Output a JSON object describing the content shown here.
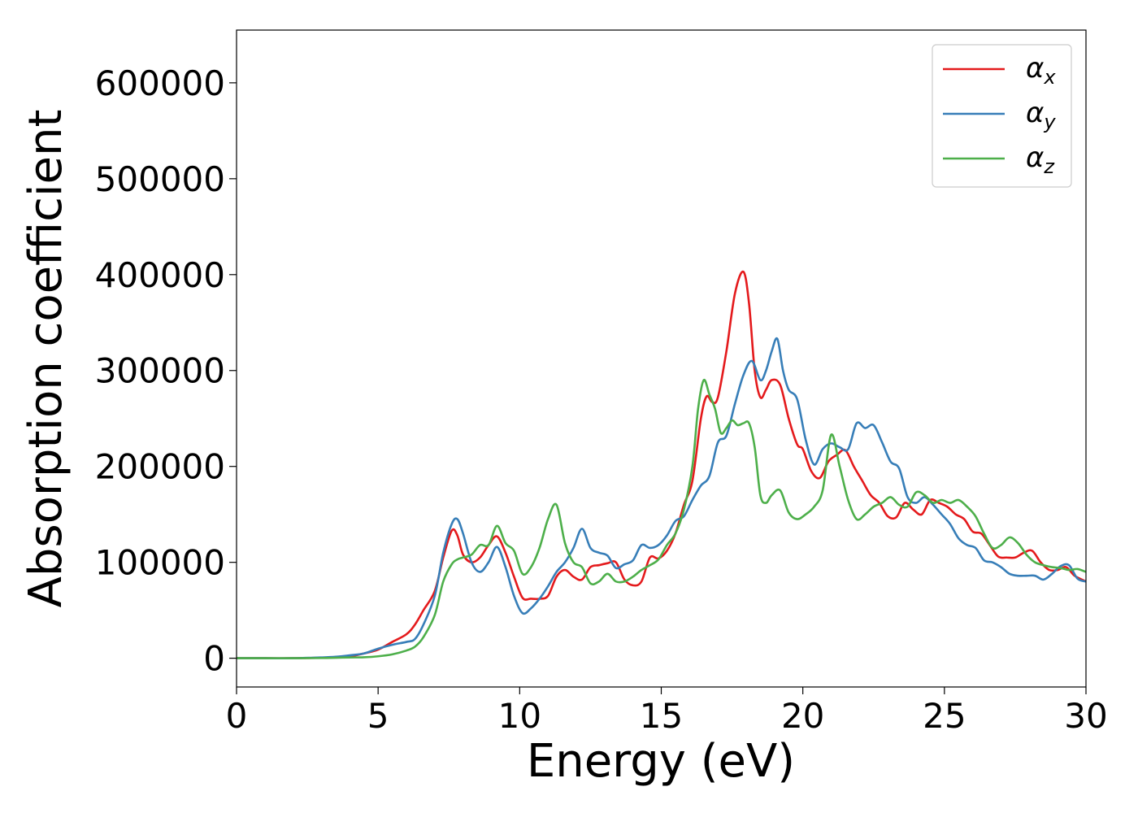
{
  "chart_data": {
    "type": "line",
    "title": "",
    "xlabel": "Energy (eV)",
    "ylabel": "Absorption coefficient",
    "xlim": [
      0,
      30
    ],
    "ylim": [
      -30000,
      655000
    ],
    "xticks": [
      0,
      5,
      10,
      15,
      20,
      25,
      30
    ],
    "yticks": [
      0,
      100000,
      200000,
      300000,
      400000,
      500000,
      600000
    ],
    "grid": false,
    "legend_position": "top-right",
    "series": [
      {
        "name": "α",
        "subscript": "x",
        "color": "#e41a1c",
        "x": [
          0,
          1,
          2,
          3,
          3.5,
          4,
          4.5,
          5,
          5.5,
          6,
          6.3,
          6.6,
          7,
          7.3,
          7.6,
          7.8,
          8,
          8.3,
          8.6,
          8.9,
          9.2,
          9.5,
          9.8,
          10.1,
          10.4,
          10.7,
          11,
          11.3,
          11.6,
          11.9,
          12.2,
          12.5,
          12.8,
          13.1,
          13.4,
          13.7,
          14,
          14.3,
          14.6,
          14.9,
          15.2,
          15.5,
          15.8,
          16.1,
          16.4,
          16.6,
          16.8,
          17,
          17.3,
          17.6,
          17.9,
          18.1,
          18.3,
          18.5,
          18.7,
          18.9,
          19.2,
          19.5,
          19.8,
          20,
          20.3,
          20.6,
          20.9,
          21.2,
          21.5,
          21.8,
          22.1,
          22.4,
          22.7,
          23,
          23.3,
          23.6,
          23.9,
          24.2,
          24.5,
          24.8,
          25.1,
          25.4,
          25.7,
          26,
          26.3,
          26.6,
          26.9,
          27.2,
          27.5,
          27.8,
          28.1,
          28.4,
          28.7,
          29,
          29.3,
          29.6,
          30
        ],
        "values": [
          0,
          0,
          0,
          500,
          1000,
          2000,
          5000,
          9000,
          17000,
          25000,
          35000,
          50000,
          70000,
          105000,
          133000,
          128000,
          108000,
          100000,
          105000,
          118000,
          127000,
          110000,
          85000,
          63000,
          62000,
          62000,
          65000,
          85000,
          92000,
          85000,
          82000,
          95000,
          97000,
          99000,
          100000,
          82000,
          76000,
          80000,
          105000,
          104000,
          112000,
          130000,
          160000,
          185000,
          250000,
          273000,
          267000,
          272000,
          320000,
          380000,
          403000,
          370000,
          300000,
          272000,
          280000,
          290000,
          285000,
          250000,
          223000,
          218000,
          195000,
          188000,
          205000,
          212000,
          217000,
          200000,
          185000,
          170000,
          162000,
          148000,
          147000,
          162000,
          155000,
          150000,
          165000,
          162000,
          158000,
          150000,
          145000,
          132000,
          130000,
          118000,
          106000,
          105000,
          105000,
          110000,
          112000,
          100000,
          92000,
          92000,
          95000,
          86000,
          80000
        ]
      },
      {
        "name": "α",
        "subscript": "y",
        "color": "#377eb8",
        "x": [
          0,
          1,
          2,
          3,
          3.5,
          4,
          4.5,
          5,
          5.5,
          6,
          6.3,
          6.6,
          7,
          7.3,
          7.6,
          7.8,
          8,
          8.3,
          8.6,
          8.9,
          9.2,
          9.5,
          9.8,
          10.1,
          10.4,
          10.7,
          11,
          11.3,
          11.6,
          11.9,
          12.2,
          12.5,
          12.8,
          13.1,
          13.4,
          13.7,
          14,
          14.3,
          14.6,
          14.9,
          15.2,
          15.5,
          15.8,
          16.1,
          16.4,
          16.7,
          17,
          17.3,
          17.6,
          17.9,
          18.2,
          18.5,
          18.7,
          18.9,
          19.1,
          19.3,
          19.5,
          19.8,
          20.1,
          20.4,
          20.7,
          21,
          21.3,
          21.6,
          21.9,
          22.2,
          22.5,
          22.8,
          23.1,
          23.4,
          23.7,
          24,
          24.3,
          24.6,
          24.9,
          25.2,
          25.5,
          25.8,
          26.1,
          26.4,
          26.7,
          27,
          27.3,
          27.6,
          27.9,
          28.2,
          28.5,
          28.8,
          29.1,
          29.4,
          29.7,
          30
        ],
        "values": [
          0,
          0,
          0,
          800,
          1500,
          3000,
          5000,
          10000,
          14000,
          17000,
          20000,
          35000,
          65000,
          110000,
          140000,
          145000,
          130000,
          100000,
          90000,
          100000,
          116000,
          95000,
          65000,
          47000,
          52000,
          62000,
          75000,
          90000,
          100000,
          115000,
          135000,
          115000,
          110000,
          107000,
          94000,
          98000,
          102000,
          118000,
          115000,
          118000,
          128000,
          143000,
          148000,
          165000,
          180000,
          190000,
          225000,
          232000,
          265000,
          295000,
          310000,
          290000,
          300000,
          320000,
          333000,
          300000,
          280000,
          270000,
          228000,
          202000,
          218000,
          224000,
          220000,
          218000,
          245000,
          240000,
          243000,
          225000,
          205000,
          198000,
          168000,
          162000,
          168000,
          160000,
          150000,
          140000,
          125000,
          118000,
          115000,
          102000,
          100000,
          95000,
          88000,
          86000,
          86000,
          86000,
          82000,
          88000,
          96000,
          97000,
          83000,
          80000
        ]
      },
      {
        "name": "α",
        "subscript": "z",
        "color": "#4daf4a",
        "x": [
          0,
          1,
          2,
          3,
          3.5,
          4,
          4.5,
          5,
          5.5,
          6,
          6.3,
          6.6,
          7,
          7.3,
          7.6,
          7.8,
          8,
          8.3,
          8.6,
          8.9,
          9.2,
          9.5,
          9.8,
          10.1,
          10.4,
          10.7,
          11,
          11.3,
          11.6,
          11.9,
          12.2,
          12.5,
          12.8,
          13.1,
          13.4,
          13.7,
          14,
          14.3,
          14.6,
          14.9,
          15.2,
          15.5,
          15.8,
          16.1,
          16.3,
          16.5,
          16.7,
          16.9,
          17.1,
          17.3,
          17.5,
          17.7,
          17.9,
          18.1,
          18.3,
          18.5,
          18.7,
          18.9,
          19.2,
          19.5,
          19.8,
          20.1,
          20.4,
          20.7,
          21,
          21.3,
          21.6,
          21.9,
          22.2,
          22.5,
          22.8,
          23.1,
          23.4,
          23.7,
          24,
          24.3,
          24.6,
          24.9,
          25.2,
          25.5,
          25.8,
          26.1,
          26.4,
          26.7,
          27,
          27.3,
          27.6,
          27.9,
          28.2,
          28.5,
          28.8,
          29.1,
          29.4,
          29.7,
          30
        ],
        "values": [
          0,
          0,
          0,
          200,
          500,
          800,
          1000,
          2000,
          4000,
          8000,
          12000,
          22000,
          45000,
          80000,
          98000,
          103000,
          105000,
          108000,
          118000,
          118000,
          138000,
          120000,
          112000,
          88000,
          95000,
          115000,
          145000,
          160000,
          120000,
          100000,
          95000,
          78000,
          80000,
          88000,
          80000,
          80000,
          85000,
          92000,
          97000,
          103000,
          118000,
          130000,
          155000,
          200000,
          260000,
          290000,
          275000,
          260000,
          235000,
          240000,
          248000,
          243000,
          245000,
          245000,
          220000,
          170000,
          162000,
          170000,
          175000,
          152000,
          145000,
          150000,
          158000,
          175000,
          233000,
          200000,
          165000,
          145000,
          150000,
          158000,
          162000,
          168000,
          160000,
          158000,
          173000,
          170000,
          162000,
          165000,
          162000,
          165000,
          158000,
          148000,
          130000,
          115000,
          118000,
          126000,
          120000,
          108000,
          100000,
          97000,
          95000,
          94000,
          92000,
          93000,
          90000
        ]
      }
    ]
  }
}
